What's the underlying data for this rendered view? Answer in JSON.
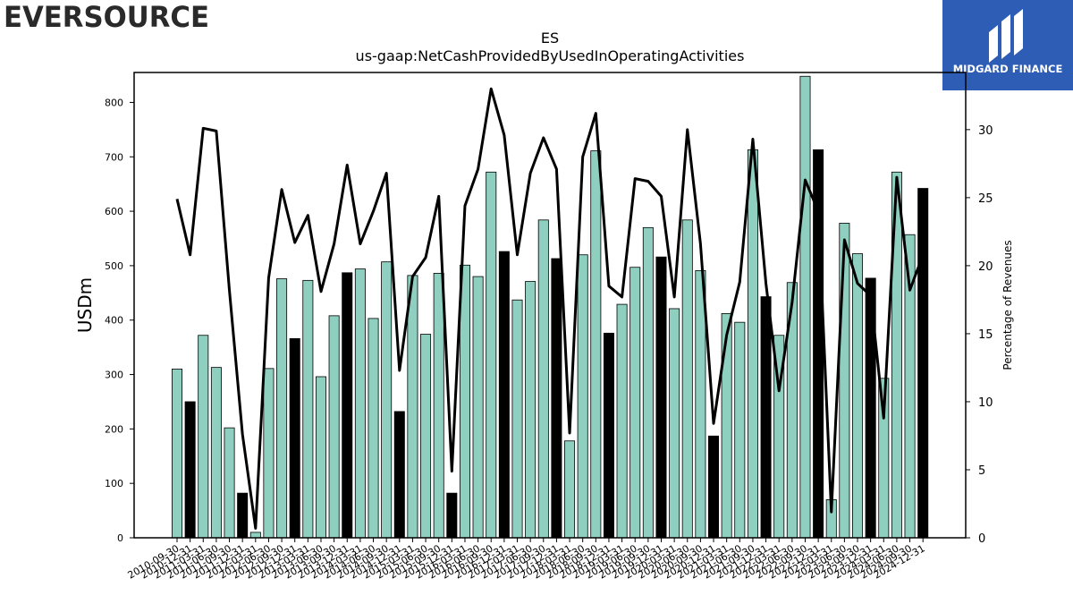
{
  "branding": {
    "company_logo_text": "EVERSOURCE",
    "watermark_text": "MIDGARD FINANCE"
  },
  "chart_data": {
    "type": "bar",
    "title": "ES",
    "subtitle": "us-gaap:NetCashProvidedByUsedInOperatingActivities",
    "ylabel": "USDm",
    "ylabel_right": "Percentage of Revenues",
    "ylim": [
      0,
      855
    ],
    "yticks": [
      0,
      100,
      200,
      300,
      400,
      500,
      600,
      700,
      800
    ],
    "ylim_right": [
      0,
      34.2
    ],
    "yticks_right": [
      0,
      5,
      10,
      15,
      20,
      25,
      30
    ],
    "legend": "none",
    "grid": false,
    "colors": {
      "quarter_bar": "#8ecfc0",
      "annual_bar": "#000000",
      "line": "#000000"
    },
    "categories": [
      "2010-09-30",
      "2010-12-31",
      "2011-03-31",
      "2011-06-30",
      "2011-09-30",
      "2011-12-31",
      "2012-03-31",
      "2012-06-30",
      "2012-09-30",
      "2012-12-31",
      "2013-03-31",
      "2013-06-30",
      "2013-09-30",
      "2013-12-31",
      "2014-03-31",
      "2014-06-30",
      "2014-09-30",
      "2014-12-31",
      "2015-03-31",
      "2015-06-30",
      "2015-09-30",
      "2015-12-31",
      "2016-03-31",
      "2016-06-30",
      "2016-09-30",
      "2016-12-31",
      "2017-03-31",
      "2017-06-30",
      "2017-09-30",
      "2017-12-31",
      "2018-03-31",
      "2018-06-30",
      "2018-09-30",
      "2018-12-31",
      "2019-03-31",
      "2019-06-30",
      "2019-09-30",
      "2019-12-31",
      "2020-03-31",
      "2020-06-30",
      "2020-09-30",
      "2020-12-31",
      "2021-03-31",
      "2021-06-30",
      "2021-09-30",
      "2021-12-31",
      "2022-03-31",
      "2022-06-30",
      "2022-09-30",
      "2022-12-31",
      "2023-03-31",
      "2023-06-30",
      "2023-09-30",
      "2023-12-31",
      "2024-03-31",
      "2024-06-30",
      "2024-09-30",
      "2024-12-31"
    ],
    "series": [
      {
        "values": [
          310,
          250,
          372,
          313,
          202,
          82,
          10,
          311,
          476,
          366,
          473,
          296,
          408,
          487,
          494,
          403,
          507,
          232,
          482,
          374,
          486,
          82,
          501,
          480,
          672,
          526,
          437,
          471,
          584,
          513,
          178,
          520,
          711,
          376,
          429,
          497,
          570,
          516,
          421,
          584,
          491,
          187,
          412,
          396,
          713,
          443,
          372,
          469,
          848,
          713,
          70,
          578,
          522,
          477,
          293,
          672,
          557,
          642
        ],
        "annual": [
          false,
          true,
          false,
          false,
          false,
          true,
          false,
          false,
          false,
          true,
          false,
          false,
          false,
          true,
          false,
          false,
          false,
          true,
          false,
          false,
          false,
          true,
          false,
          false,
          false,
          true,
          false,
          false,
          false,
          true,
          false,
          false,
          false,
          true,
          false,
          false,
          false,
          true,
          false,
          false,
          false,
          true,
          false,
          false,
          false,
          true,
          false,
          false,
          false,
          true,
          false,
          false,
          false,
          true,
          false,
          false,
          false,
          true
        ]
      },
      {
        "axis": "right",
        "values": [
          24.9,
          20.8,
          30.1,
          29.9,
          18.2,
          7.6,
          0.7,
          19.1,
          25.6,
          21.7,
          23.7,
          18.1,
          21.6,
          27.4,
          21.6,
          24.0,
          26.8,
          12.3,
          19.2,
          20.6,
          25.1,
          4.9,
          24.4,
          27.1,
          33.0,
          29.6,
          20.8,
          26.8,
          29.4,
          27.1,
          7.7,
          28.0,
          31.2,
          18.5,
          17.7,
          26.4,
          26.2,
          25.1,
          17.7,
          30.0,
          21.6,
          8.4,
          14.9,
          18.8,
          29.3,
          18.7,
          10.8,
          17.3,
          26.3,
          24.0,
          1.9,
          21.9,
          18.7,
          17.8,
          8.8,
          26.5,
          18.2,
          20.8
        ]
      }
    ]
  }
}
